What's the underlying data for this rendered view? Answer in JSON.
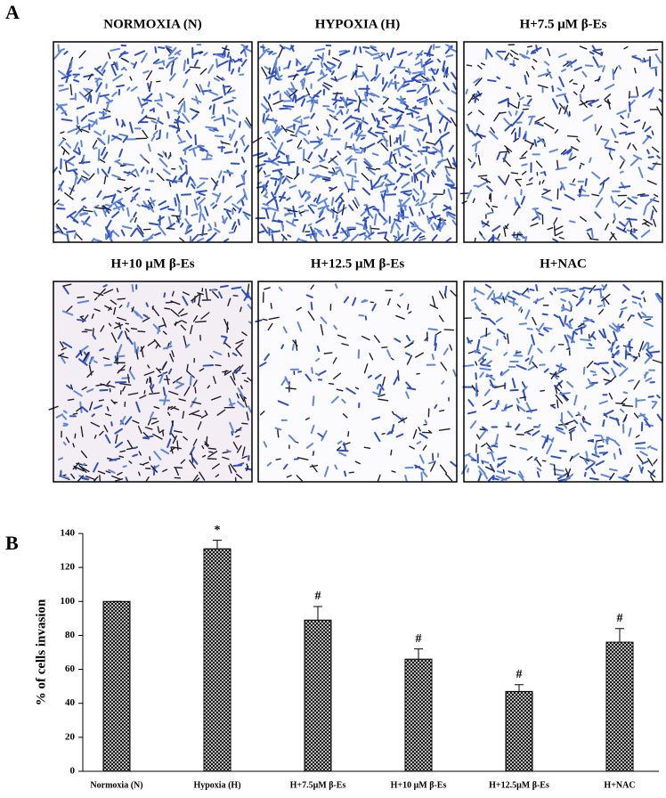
{
  "panel_labels": [
    "A",
    "B"
  ],
  "images": [
    "NORMOXIA (N)",
    "HYPOXIA (H)",
    "H+7.5 μM β-Es",
    "H+10 μM β-Es",
    "H+12.5 μM β-Es",
    "H+NAC"
  ],
  "chart_data": {
    "type": "bar",
    "categories": [
      "Normoxia (N)",
      "Hypoxia (H)",
      "H+7.5μM β-Es",
      "H+10 μM β-Es",
      "H+12.5μM β-Es",
      "H+NAC"
    ],
    "values": [
      100,
      131,
      89,
      66,
      47,
      76
    ],
    "errors": [
      0,
      5,
      8,
      6,
      4,
      8
    ],
    "annotations": [
      null,
      "*",
      "#",
      "#",
      "#",
      "#"
    ],
    "y_label": "% of cells invasion",
    "ylim": [
      0,
      140
    ],
    "yticks": [
      0,
      20,
      40,
      60,
      80,
      100,
      120,
      140
    ],
    "color": "#000000",
    "grid": false
  }
}
